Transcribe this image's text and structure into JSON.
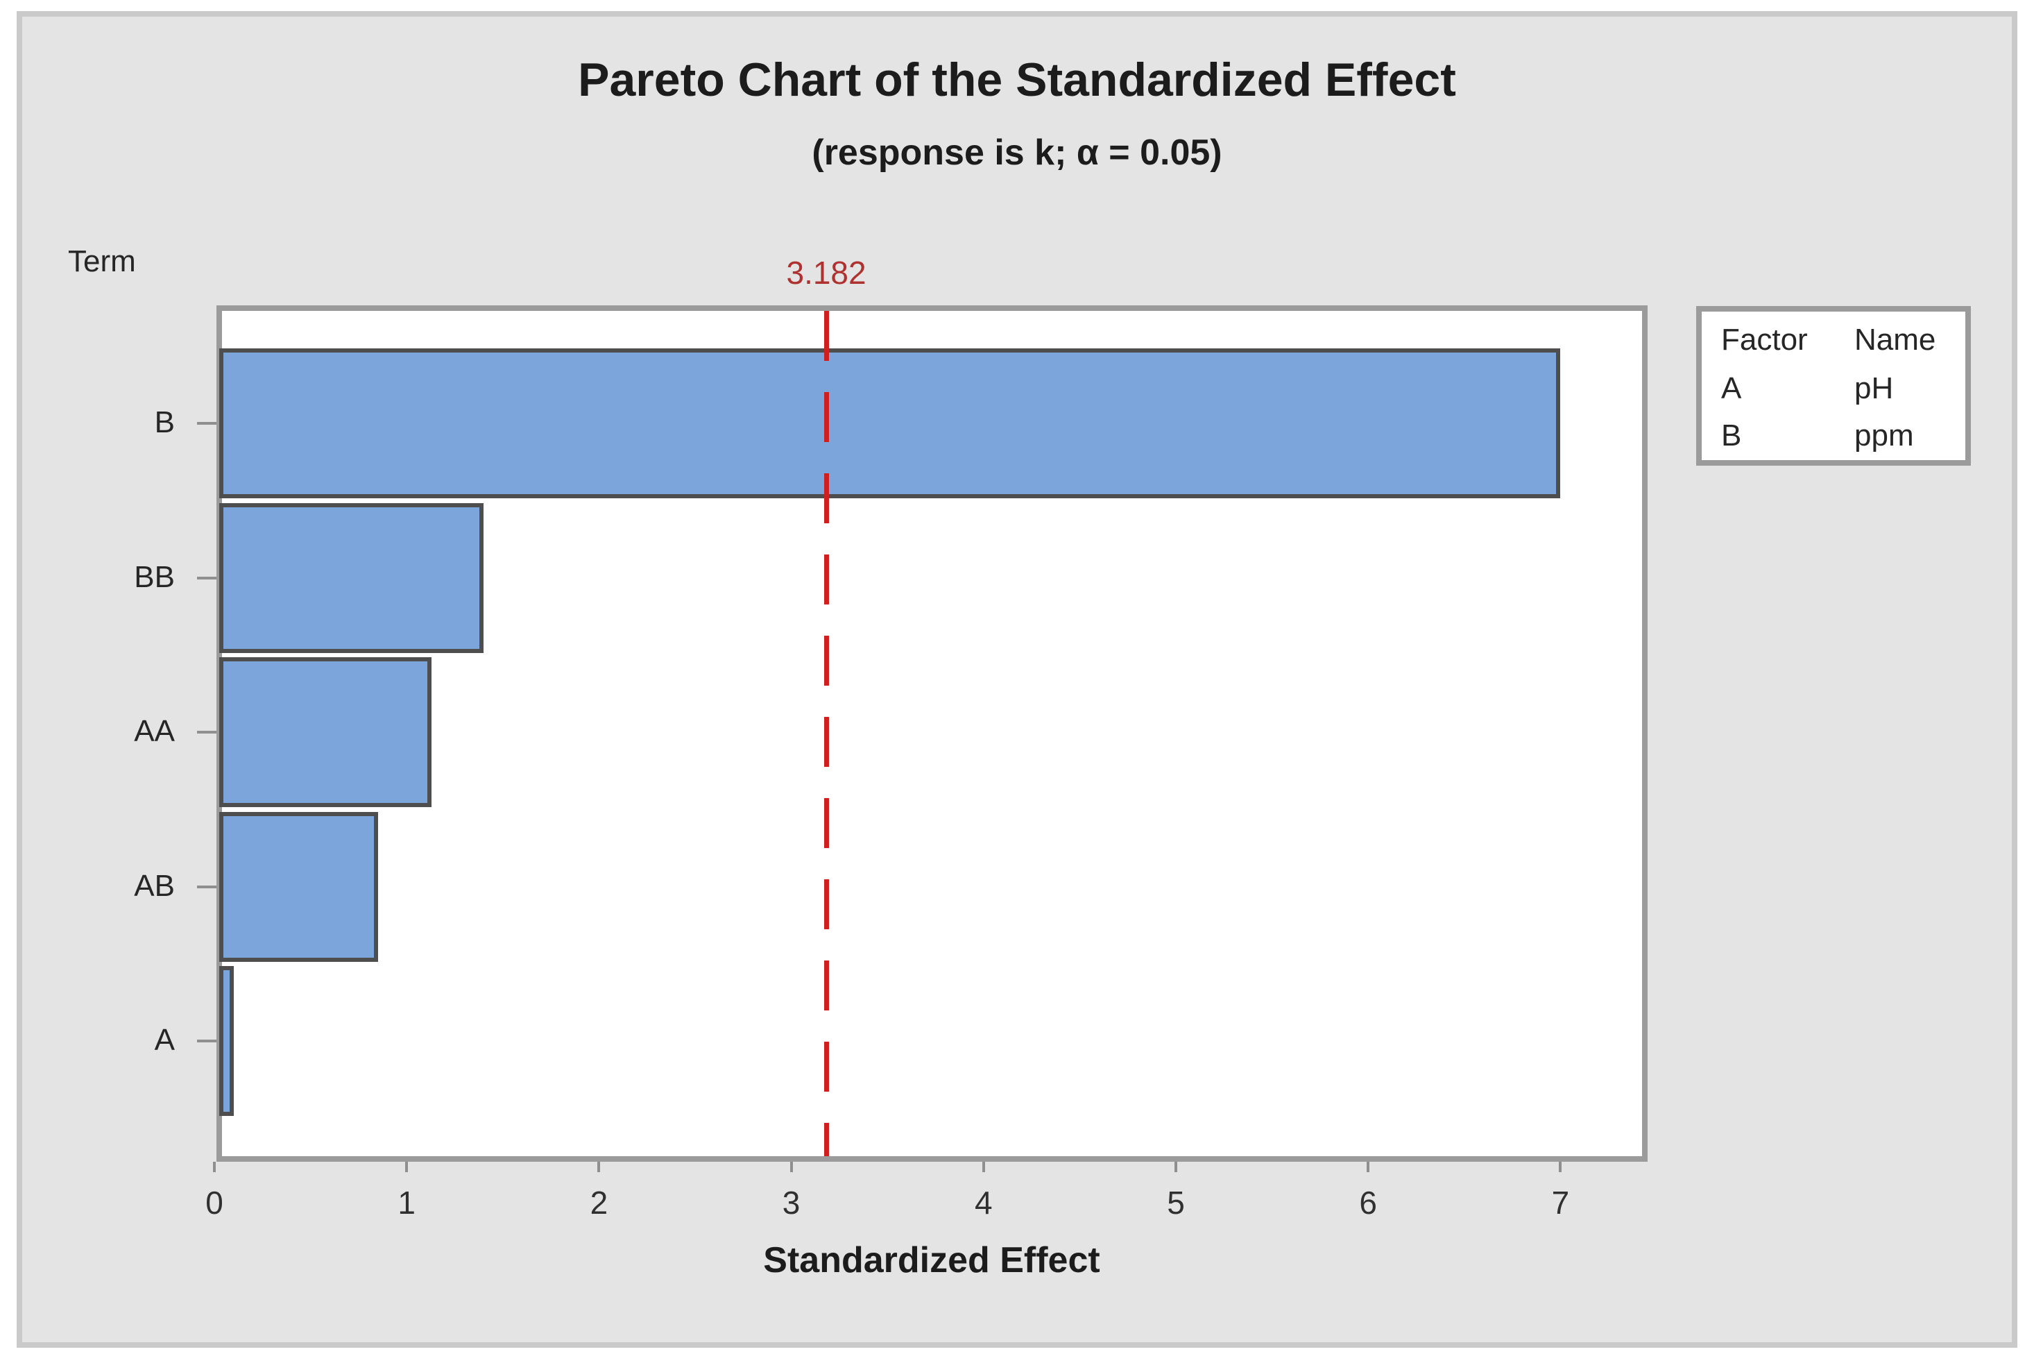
{
  "figure": {
    "title": "Pareto Chart of the Standardized Effect",
    "subtitle": "(response is k; α = 0.05)",
    "y_axis_title": "Term",
    "x_axis_title": "Standardized Effect"
  },
  "chart_data": {
    "type": "bar",
    "orientation": "horizontal",
    "title": "Pareto Chart of the Standardized Effect",
    "subtitle": "(response is k; α = 0.05)",
    "xlabel": "Standardized Effect",
    "ylabel": "Term",
    "categories": [
      "B",
      "BB",
      "AA",
      "AB",
      "A"
    ],
    "values": [
      7.0,
      1.4,
      1.13,
      0.85,
      0.1
    ],
    "xlim": [
      0,
      7.45
    ],
    "xticks": [
      0,
      1,
      2,
      3,
      4,
      5,
      6,
      7
    ],
    "grid": false,
    "legend_position": "right",
    "reference_line": {
      "value": 3.182,
      "label": "3.182",
      "style": "dashed"
    },
    "legend": {
      "headers": [
        "Factor",
        "Name"
      ],
      "rows": [
        [
          "A",
          "pH"
        ],
        [
          "B",
          "ppm"
        ]
      ]
    }
  },
  "colors": {
    "figure_background": "#E4E4E4",
    "figure_border": "#CACACA",
    "plot_background": "#FFFFFF",
    "plot_border": "#9B9B9B",
    "bar_fill": "#7CA6DB",
    "bar_border": "#4E4E4E",
    "reference_line": "#D01F1F",
    "reference_label": "#AE3230",
    "title_text": "#1C1C1C",
    "axis_text": "#262626",
    "tick_mark": "#8F8F8F"
  }
}
